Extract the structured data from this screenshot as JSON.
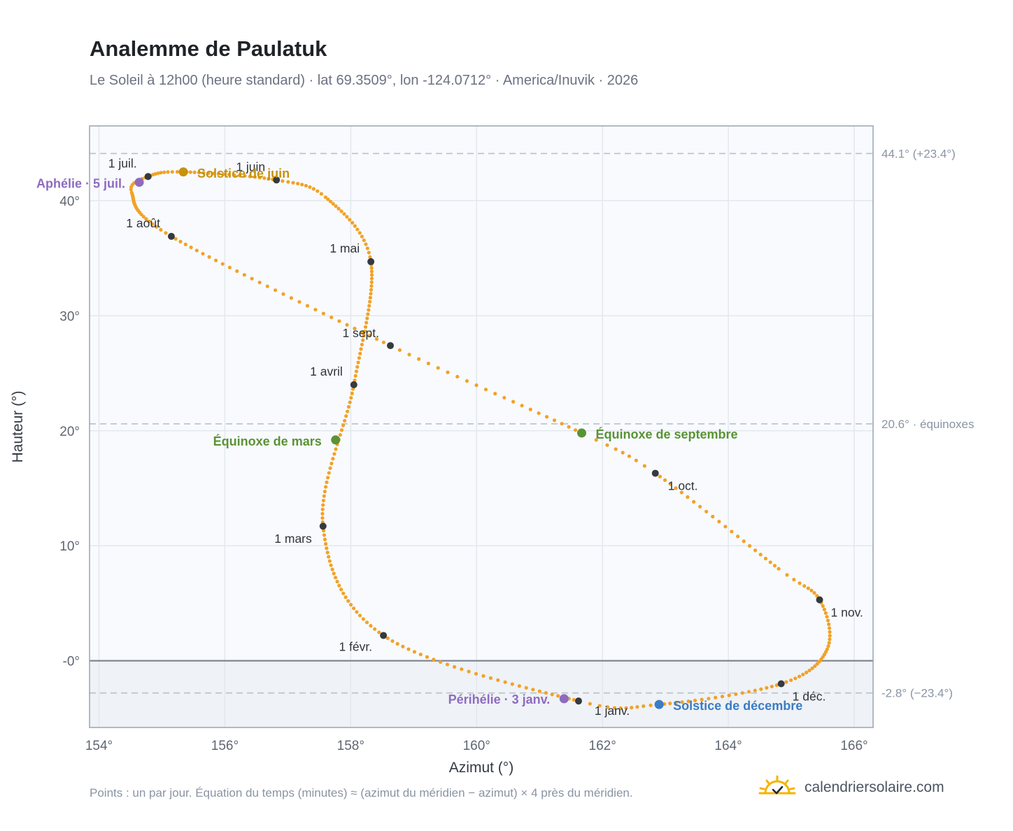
{
  "header": {
    "title": "Analemme de Paulatuk",
    "subtitle": "Le Soleil à 12h00 (heure standard) · lat 69.3509°, lon -124.0712° · America/Inuvik · 2026"
  },
  "footer": {
    "note": "Points : un par jour. Équation du temps (minutes) ≈ (azimut du méridien − azimut) × 4 près du méridien.",
    "brand": "calendriersolaire.com",
    "brand_icon": "sun-check-icon"
  },
  "colors": {
    "curve": "#f2a227",
    "month_marker": "#343a40",
    "solstice_june": "#c8920d",
    "solstice_december": "#3b7cc4",
    "equinox": "#5a9336",
    "apsides": "#8e6bbf",
    "plot_bg": "#f8fafd",
    "below_horizon_bg": "#eff2f6"
  },
  "chart_data": {
    "type": "scatter",
    "xlabel": "Azimut (°)",
    "ylabel": "Hauteur (°)",
    "xlim": [
      153.85,
      166.3
    ],
    "ylim": [
      -5.8,
      46.5
    ],
    "x_ticks": [
      {
        "value": 154,
        "label": "154°"
      },
      {
        "value": 156,
        "label": "156°"
      },
      {
        "value": 158,
        "label": "158°"
      },
      {
        "value": 160,
        "label": "160°"
      },
      {
        "value": 162,
        "label": "162°"
      },
      {
        "value": 164,
        "label": "164°"
      },
      {
        "value": 166,
        "label": "166°"
      }
    ],
    "y_ticks": [
      {
        "value": 0,
        "label": "-0°"
      },
      {
        "value": 10,
        "label": "10°"
      },
      {
        "value": 20,
        "label": "20°"
      },
      {
        "value": 30,
        "label": "30°"
      },
      {
        "value": 40,
        "label": "40°"
      }
    ],
    "grid": true,
    "horizon": 0,
    "reference_lines": [
      {
        "y": 44.1,
        "label": "44.1° (+23.4°)"
      },
      {
        "y": 20.6,
        "label": "20.6° · équinoxes"
      },
      {
        "y": -2.8,
        "label": "-2.8° (−23.4°)"
      }
    ],
    "series": [
      {
        "points_per": "jour",
        "anchors": [
          {
            "day": 0,
            "az": 161.62,
            "alt": -3.5
          },
          {
            "day": 31,
            "az": 158.52,
            "alt": 2.2
          },
          {
            "day": 59,
            "az": 157.56,
            "alt": 11.7
          },
          {
            "day": 90,
            "az": 158.05,
            "alt": 24.0
          },
          {
            "day": 120,
            "az": 158.32,
            "alt": 34.7
          },
          {
            "day": 140,
            "az": 157.6,
            "alt": 40.3
          },
          {
            "day": 151,
            "az": 156.82,
            "alt": 41.8
          },
          {
            "day": 171,
            "az": 155.34,
            "alt": 42.5
          },
          {
            "day": 181,
            "az": 154.78,
            "alt": 42.1
          },
          {
            "day": 190,
            "az": 154.52,
            "alt": 40.7
          },
          {
            "day": 212,
            "az": 155.15,
            "alt": 36.9
          },
          {
            "day": 243,
            "az": 158.63,
            "alt": 27.4
          },
          {
            "day": 265,
            "az": 161.67,
            "alt": 19.8
          },
          {
            "day": 273,
            "az": 162.84,
            "alt": 16.3
          },
          {
            "day": 295,
            "az": 164.8,
            "alt": 8.0
          },
          {
            "day": 304,
            "az": 165.45,
            "alt": 5.3
          },
          {
            "day": 318,
            "az": 165.57,
            "alt": 1.0
          },
          {
            "day": 334,
            "az": 164.84,
            "alt": -2.0
          },
          {
            "day": 354,
            "az": 162.9,
            "alt": -3.8
          },
          {
            "day": 365,
            "az": 161.62,
            "alt": -3.5
          }
        ]
      }
    ],
    "month_markers": [
      {
        "label": "1 janv.",
        "az": 161.62,
        "alt": -3.5
      },
      {
        "label": "1 févr.",
        "az": 158.52,
        "alt": 2.2
      },
      {
        "label": "1 mars",
        "az": 157.56,
        "alt": 11.7
      },
      {
        "label": "1 avril",
        "az": 158.05,
        "alt": 24.0
      },
      {
        "label": "1 mai",
        "az": 158.32,
        "alt": 34.7
      },
      {
        "label": "1 juin",
        "az": 156.82,
        "alt": 41.8
      },
      {
        "label": "1 juil.",
        "az": 154.78,
        "alt": 42.1
      },
      {
        "label": "1 août",
        "az": 155.15,
        "alt": 36.9
      },
      {
        "label": "1 sept.",
        "az": 158.63,
        "alt": 27.4
      },
      {
        "label": "1 oct.",
        "az": 162.84,
        "alt": 16.3
      },
      {
        "label": "1 nov.",
        "az": 165.45,
        "alt": 5.3
      },
      {
        "label": "1 déc.",
        "az": 164.84,
        "alt": -2.0
      }
    ],
    "events": [
      {
        "label": "Solstice de juin",
        "az": 155.34,
        "alt": 42.5,
        "kind": "solstice_june"
      },
      {
        "label": "Aphélie · 5 juil.",
        "az": 154.64,
        "alt": 41.6,
        "kind": "apsides"
      },
      {
        "label": "Équinoxe de mars",
        "az": 157.76,
        "alt": 19.2,
        "kind": "equinox"
      },
      {
        "label": "Équinoxe de septembre",
        "az": 161.67,
        "alt": 19.8,
        "kind": "equinox"
      },
      {
        "label": "Périhélie · 3 janv.",
        "az": 161.39,
        "alt": -3.3,
        "kind": "apsides"
      },
      {
        "label": "Solstice de décembre",
        "az": 162.9,
        "alt": -3.8,
        "kind": "solstice_december"
      }
    ]
  }
}
